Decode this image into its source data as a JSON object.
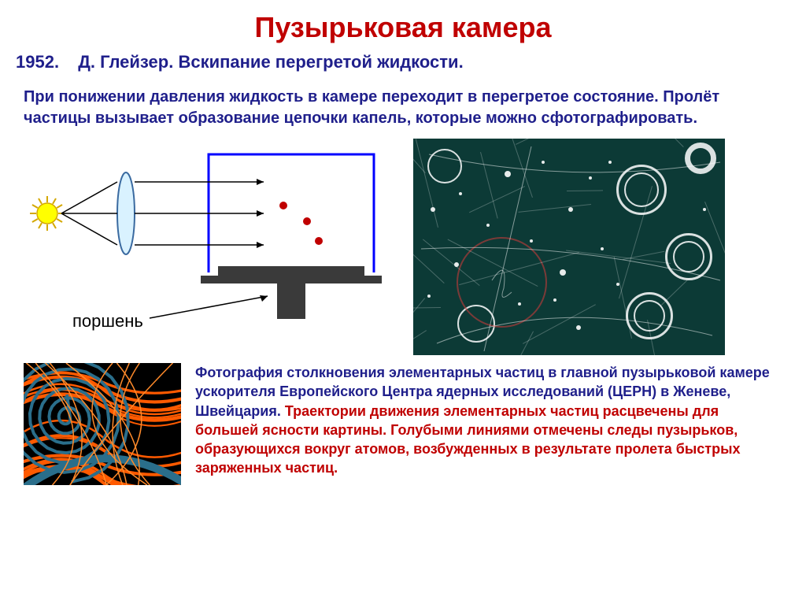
{
  "title": {
    "text": "Пузырьковая камера",
    "color": "#c00000",
    "fontsize": 36
  },
  "subtitle": {
    "year": "1952.",
    "text": "Д. Глейзер. Вскипание перегретой жидкости.",
    "color": "#1f1f8b",
    "fontsize": 22
  },
  "description": {
    "text": "При понижении давления жидкость в камере переходит в перегретое состояние. Пролёт частицы вызывает образование  цепочки капель, которые можно сфотографировать.",
    "color": "#1f1f8b",
    "fontsize": 20
  },
  "diagram": {
    "piston_label": "поршень",
    "piston_label_color": "#000000",
    "chamber_border_color": "#0000ff",
    "chamber_border_width": 3,
    "piston_color": "#3a3a3a",
    "ray_color": "#000000",
    "ray_width": 1.5,
    "particle_color": "#c00000",
    "particle_radius": 5,
    "sun_fill": "#ffff00",
    "sun_stroke": "#d4a800",
    "lens_fill": "#d9f2ff",
    "lens_stroke": "#3a6aa0"
  },
  "bubble_photo": {
    "background": "#0c3a36",
    "ring_color": "#ffffff",
    "red_circle_color": "#c43a3a"
  },
  "orange_box": {
    "colors": [
      "#ff5a00",
      "#ff8a2a",
      "#2a6e8b",
      "#000000"
    ]
  },
  "caption": {
    "part1": {
      "text": "Фотография столкновения элементарных частиц в главной пузырьковой камере ускорителя Европейского Центра ядерных исследований (ЦЕРН) в Женеве, Швейцария. ",
      "color": "#1f1f8b"
    },
    "part2": {
      "text": "Траектории движения элементарных частиц расцвечены для большей ясности картины. Голубыми линиями отмечены следы пузырьков, образующихся вокруг атомов, возбужденных в результате пролета быстрых заряженных частиц.",
      "color": "#c00000"
    },
    "fontsize": 18
  }
}
